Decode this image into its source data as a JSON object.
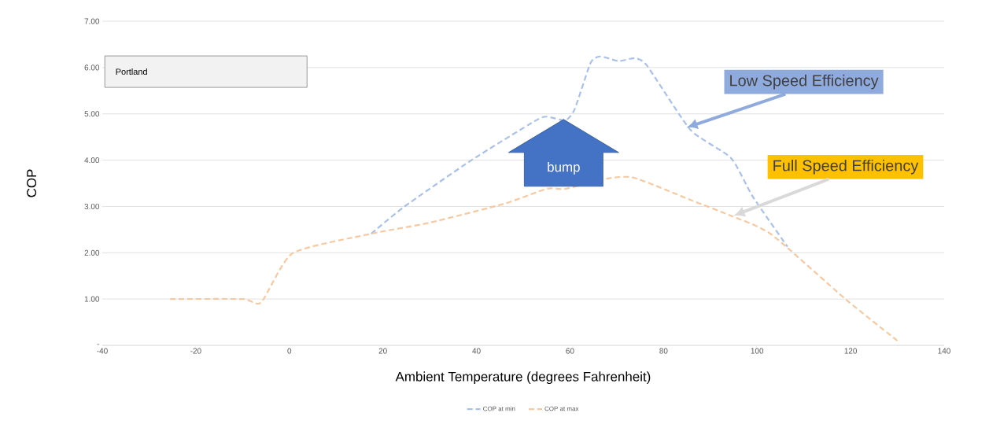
{
  "chart_data": {
    "type": "line",
    "xlabel": "Ambient Temperature (degrees Fahrenheit)",
    "ylabel": "COP",
    "xlim": [
      -40,
      140
    ],
    "xticks": [
      -40,
      -20,
      0,
      20,
      40,
      60,
      80,
      100,
      120,
      140
    ],
    "ylim": [
      0,
      7
    ],
    "yticks": [
      {
        "value": 0,
        "label": "-"
      },
      {
        "value": 1,
        "label": "1.00"
      },
      {
        "value": 2,
        "label": "2.00"
      },
      {
        "value": 3,
        "label": "3.00"
      },
      {
        "value": 4,
        "label": "4.00"
      },
      {
        "value": 5,
        "label": "5.00"
      },
      {
        "value": 6,
        "label": "6.00"
      },
      {
        "value": 7,
        "label": "7.00"
      }
    ],
    "grid": "y",
    "legend": "bottom",
    "line_style": "dashed",
    "marker": "none",
    "series": [
      {
        "name": "COP at min",
        "color": "#a9c1e8",
        "x": [
          17.5,
          24.5,
          38.8,
          52.4,
          55,
          59,
          61,
          64.4,
          66.5,
          70.4,
          73.7,
          76.4,
          85.8,
          94.4,
          99.1,
          106.5
        ],
        "values": [
          2.41,
          2.99,
          3.99,
          4.84,
          4.94,
          4.86,
          5.1,
          6.1,
          6.24,
          6.14,
          6.2,
          6.05,
          4.65,
          4.05,
          3.21,
          2.13
        ]
      },
      {
        "name": "COP at max",
        "color": "#f8c8a0",
        "x": [
          -25.5,
          -10,
          -6,
          0.7,
          17.5,
          30,
          46,
          55,
          59,
          67.8,
          73.7,
          85.8,
          94.4,
          103,
          119,
          130
        ],
        "values": [
          1.0,
          1.0,
          0.93,
          1.99,
          2.41,
          2.65,
          3.06,
          3.38,
          3.38,
          3.6,
          3.62,
          3.14,
          2.8,
          2.4,
          0.99,
          0.1
        ]
      }
    ],
    "annotations": [
      "Portland",
      "bump",
      "Low Speed Efficiency",
      "Full Speed Efficiency"
    ]
  }
}
